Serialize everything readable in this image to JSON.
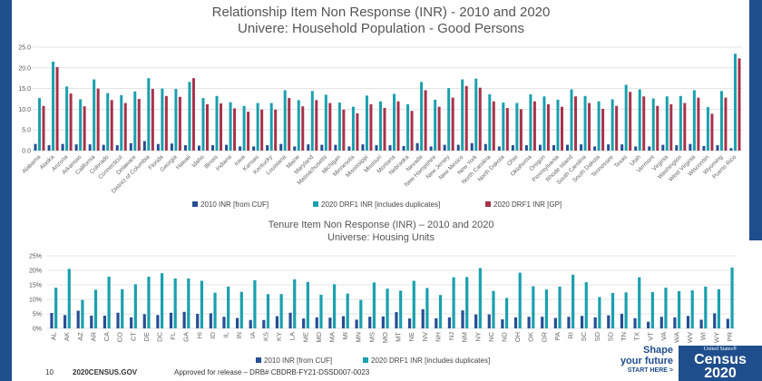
{
  "chart_data": [
    {
      "type": "bar",
      "title": "Relationship Item Non Response (INR) - 2010 and 2020",
      "subtitle": "Univere: Household Population - Good Persons",
      "ylim": [
        0,
        25
      ],
      "yticks": [
        "0.0",
        "5.0",
        "10.0",
        "15.0",
        "20.0",
        "25.0"
      ],
      "grid": true,
      "legend": "bottom",
      "categories": [
        "Alabama",
        "Alaska",
        "Arizona",
        "Arkansas",
        "California",
        "Colorado",
        "Connecticut",
        "Delaware",
        "District of Columbia",
        "Florida",
        "Georgia",
        "Hawaii",
        "Idaho",
        "Illinois",
        "Indiana",
        "Iowa",
        "Kansas",
        "Kentucky",
        "Louisiana",
        "Maine",
        "Maryland",
        "Massachusetts",
        "Michigan",
        "Minnesota",
        "Mississippi",
        "Missouri",
        "Montana",
        "Nebraska",
        "Nevada",
        "New Hampshire",
        "New Jersey",
        "New Mexico",
        "New York",
        "North Carolina",
        "North Dakota",
        "Ohio",
        "Oklahoma",
        "Oregon",
        "Pennsylvania",
        "Rhode Island",
        "South Carolina",
        "South Dakota",
        "Tennessee",
        "Texas",
        "Utah",
        "Vermont",
        "Virginia",
        "Washington",
        "West Virginia",
        "Wisconsin",
        "Wyoming",
        "Puerto Rico"
      ],
      "series": [
        {
          "name": "2010 INR [from CUF]",
          "color": "#264f94",
          "values": [
            1.6,
            1.3,
            1.6,
            1.5,
            1.5,
            1.4,
            1.3,
            1.8,
            2.3,
            1.6,
            1.7,
            1.3,
            1.2,
            1.3,
            1.4,
            1.0,
            1.0,
            1.3,
            1.6,
            1.0,
            1.5,
            1.4,
            1.4,
            1.0,
            1.5,
            1.3,
            1.3,
            1.1,
            1.8,
            1.0,
            1.4,
            1.4,
            1.8,
            1.6,
            1.0,
            1.3,
            1.3,
            1.4,
            1.3,
            1.4,
            1.5,
            1.0,
            1.5,
            1.5,
            1.0,
            1.0,
            1.4,
            1.3,
            1.6,
            1.1,
            1.3,
            0.6
          ]
        },
        {
          "name": "2020 DRF1 INR [includes duplicates]",
          "color": "#1aa0ae",
          "values": [
            12.7,
            21.5,
            15.5,
            12.4,
            17.2,
            13.9,
            13.4,
            14.3,
            17.5,
            15.0,
            14.9,
            16.6,
            12.7,
            13.2,
            11.7,
            10.8,
            11.5,
            11.5,
            14.6,
            12.2,
            14.4,
            13.5,
            11.6,
            10.6,
            13.3,
            11.9,
            13.7,
            11.2,
            16.6,
            12.3,
            15.1,
            17.2,
            17.4,
            13.6,
            11.6,
            11.5,
            13.6,
            13.1,
            12.3,
            14.8,
            13.2,
            11.9,
            12.4,
            15.9,
            14.8,
            12.6,
            13.1,
            13.2,
            14.6,
            10.5,
            14.4,
            23.4
          ]
        },
        {
          "name": "2020 DRF1 INR [GP]",
          "color": "#a8324a",
          "values": [
            10.8,
            20.2,
            13.8,
            10.7,
            15.0,
            12.2,
            11.5,
            12.5,
            14.9,
            13.2,
            13.0,
            17.5,
            11.2,
            11.4,
            10.2,
            9.4,
            9.9,
            9.9,
            12.7,
            10.7,
            12.2,
            11.5,
            9.9,
            9.0,
            11.2,
            10.3,
            11.9,
            9.6,
            14.6,
            10.6,
            12.8,
            15.6,
            15.2,
            11.9,
            10.3,
            10.0,
            11.9,
            11.2,
            10.6,
            13.1,
            11.5,
            10.1,
            10.8,
            14.2,
            13.1,
            10.8,
            11.2,
            11.5,
            12.8,
            8.9,
            12.8,
            22.3
          ]
        }
      ]
    },
    {
      "type": "bar",
      "title": "Tenure Item Non Response (INR) – 2010 and 2020",
      "subtitle": "Universe: Housing Units",
      "ylim": [
        0,
        25
      ],
      "yticks": [
        "0%",
        "5%",
        "10%",
        "15%",
        "20%",
        "25%"
      ],
      "grid": true,
      "legend": "bottom",
      "categories": [
        "AL",
        "AK",
        "AZ",
        "AR",
        "CA",
        "CO",
        "CT",
        "DE",
        "DC",
        "FL",
        "GA",
        "HI",
        "ID",
        "IL",
        "IN",
        "IA",
        "KS",
        "KY",
        "LA",
        "ME",
        "MD",
        "MA",
        "MI",
        "MN",
        "MS",
        "MO",
        "MT",
        "NE",
        "NV",
        "NH",
        "NJ",
        "NM",
        "NY",
        "NC",
        "ND",
        "OH",
        "OK",
        "OR",
        "PA",
        "RI",
        "SC",
        "SD",
        "SD",
        "TN",
        "TX",
        "VT",
        "VA",
        "WA",
        "WV",
        "WI",
        "WY",
        "PR"
      ],
      "series": [
        {
          "name": "2010 INR [from CUF]",
          "color": "#264f94",
          "values": [
            5.3,
            4.6,
            6.1,
            4.4,
            4.4,
            5.4,
            3.8,
            4.9,
            4.6,
            5.4,
            5.7,
            5.0,
            5.2,
            4.0,
            3.6,
            2.9,
            2.9,
            4.2,
            5.4,
            3.4,
            3.8,
            3.7,
            4.2,
            3.0,
            4.0,
            4.1,
            5.6,
            3.4,
            6.6,
            3.5,
            3.8,
            6.2,
            4.8,
            4.8,
            3.1,
            3.8,
            4.0,
            4.0,
            3.6,
            4.0,
            4.3,
            3.8,
            4.5,
            5.0,
            3.5,
            2.3,
            4.0,
            3.8,
            4.3,
            3.0,
            5.2,
            3.3
          ]
        },
        {
          "name": "2020 DRF1 INR [includes duplicates]",
          "color": "#1aa0ae",
          "values": [
            14.0,
            20.5,
            9.8,
            13.3,
            17.8,
            13.5,
            15.2,
            17.8,
            19.0,
            17.2,
            17.2,
            16.4,
            12.3,
            14.4,
            12.6,
            16.6,
            11.8,
            11.8,
            16.9,
            16.0,
            11.6,
            15.2,
            12.0,
            9.8,
            15.8,
            13.7,
            13.0,
            16.4,
            13.9,
            11.5,
            17.6,
            17.7,
            20.8,
            12.9,
            10.5,
            19.2,
            14.5,
            13.4,
            14.4,
            18.5,
            15.9,
            10.8,
            12.2,
            12.4,
            17.6,
            12.5,
            14.0,
            12.8,
            13.1,
            14.4,
            13.5,
            21.0
          ]
        }
      ]
    }
  ],
  "footer": {
    "page_number": "10",
    "site": "2020CENSUS.GOV",
    "approval": "Approved for release – DRB# CBDRB-FY21-DSSD007-0023"
  },
  "branding": {
    "shape_line1": "Shape",
    "shape_line2": "your future",
    "cta": "START HERE >",
    "logo_top": "United States®",
    "logo_mid": "Census",
    "logo_year": "2020",
    "brand_color": "#1f4e8c"
  }
}
